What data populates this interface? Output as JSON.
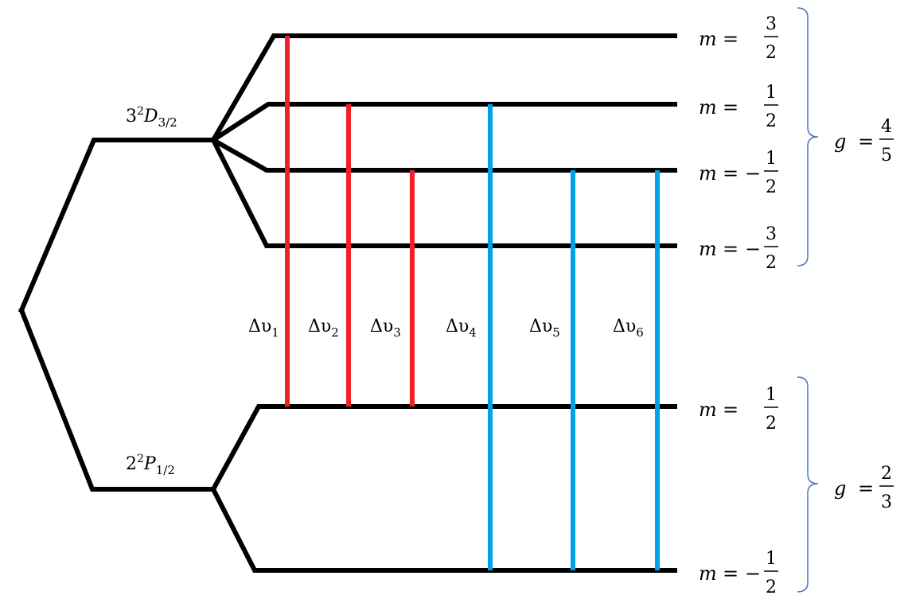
{
  "colors": {
    "line": "#000000",
    "red_transition": "#ee2226",
    "blue_transition": "#00a2e8",
    "brace": "#4a76b8"
  },
  "upper_term": {
    "n": "3",
    "mult": "2",
    "L": "D",
    "J": "3/2"
  },
  "lower_term": {
    "n": "2",
    "mult": "2",
    "L": "P",
    "J": "1/2"
  },
  "upper_sublevels": [
    {
      "sign": "",
      "num": "3",
      "den": "2"
    },
    {
      "sign": "",
      "num": "1",
      "den": "2"
    },
    {
      "sign": "−",
      "num": "1",
      "den": "2"
    },
    {
      "sign": "−",
      "num": "3",
      "den": "2"
    }
  ],
  "lower_sublevels": [
    {
      "sign": "",
      "num": "1",
      "den": "2"
    },
    {
      "sign": "−",
      "num": "1",
      "den": "2"
    }
  ],
  "m_symbol": "m",
  "equals": "=",
  "g_upper": {
    "symbol": "g",
    "num": "4",
    "den": "5"
  },
  "g_lower": {
    "symbol": "g",
    "num": "2",
    "den": "3"
  },
  "transitions": [
    {
      "label": "Δυ",
      "sub": "1",
      "color": "red"
    },
    {
      "label": "Δυ",
      "sub": "2",
      "color": "red"
    },
    {
      "label": "Δυ",
      "sub": "3",
      "color": "red"
    },
    {
      "label": "Δυ",
      "sub": "4",
      "color": "blue"
    },
    {
      "label": "Δυ",
      "sub": "5",
      "color": "blue"
    },
    {
      "label": "Δυ",
      "sub": "6",
      "color": "blue"
    }
  ]
}
